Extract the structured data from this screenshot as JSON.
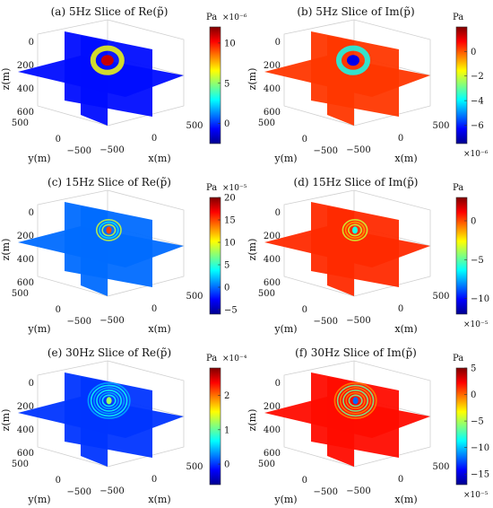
{
  "chart_data": [
    {
      "type": "heatmap",
      "title": "(a) 5Hz Slice of Re(p̃)",
      "colorbar": {
        "unit": "Pa",
        "exponent": "×10⁻⁶",
        "ticks": [
          "10",
          "5",
          "0"
        ],
        "tick_values": [
          10,
          5,
          0
        ],
        "range": [
          -2.5,
          12
        ]
      },
      "ztick_labels": [
        "0",
        "200",
        "400",
        "600"
      ],
      "ytick_labels": [
        "500",
        "0",
        "−500"
      ],
      "xtick_labels": [
        "−500",
        "0",
        "500"
      ],
      "xlabel": "x(m)",
      "ylabel": "y(m)",
      "zlabel": "z(m)",
      "background_value": -0.5,
      "source_value": 11,
      "colormap": "jet"
    },
    {
      "type": "heatmap",
      "title": "(b) 5Hz Slice of Im(p̃)",
      "colorbar": {
        "unit": "Pa",
        "exponent": "×10⁻⁶",
        "ticks": [
          "0",
          "−2",
          "−4",
          "−6"
        ],
        "tick_values": [
          0,
          -2,
          -4,
          -6
        ],
        "range": [
          -7.5,
          2
        ]
      },
      "ztick_labels": [
        "0",
        "200",
        "400",
        "600"
      ],
      "ytick_labels": [
        "500",
        "0",
        "−500"
      ],
      "xtick_labels": [
        "−500",
        "0",
        "500"
      ],
      "xlabel": "x(m)",
      "ylabel": "y(m)",
      "zlabel": "z(m)",
      "background_value": 0.3,
      "source_value": -6.5,
      "colormap": "jet"
    },
    {
      "type": "heatmap",
      "title": "(c) 15Hz Slice of Re(p̃)",
      "colorbar": {
        "unit": "Pa",
        "exponent": "×10⁻⁵",
        "ticks": [
          "20",
          "15",
          "10",
          "5",
          "0",
          "−5"
        ],
        "tick_values": [
          20,
          15,
          10,
          5,
          0,
          -5
        ],
        "range": [
          -6,
          20
        ]
      },
      "ztick_labels": [
        "0",
        "200",
        "400",
        "600"
      ],
      "ytick_labels": [
        "500",
        "0",
        "−500"
      ],
      "xtick_labels": [
        "−500",
        "0",
        "500"
      ],
      "xlabel": "x(m)",
      "ylabel": "y(m)",
      "zlabel": "z(m)",
      "background_value": 0,
      "source_value": 15,
      "colormap": "jet"
    },
    {
      "type": "heatmap",
      "title": "(d) 15Hz Slice of Im(p̃)",
      "colorbar": {
        "unit": "Pa",
        "exponent": "×10⁻⁵",
        "ticks": [
          "0",
          "−5",
          "−10"
        ],
        "tick_values": [
          0,
          -5,
          -10
        ],
        "range": [
          -12,
          3
        ]
      },
      "ztick_labels": [
        "0",
        "200",
        "400",
        "600"
      ],
      "ytick_labels": [
        "500",
        "0",
        "−500"
      ],
      "xtick_labels": [
        "−500",
        "0",
        "500"
      ],
      "xlabel": "x(m)",
      "ylabel": "y(m)",
      "zlabel": "z(m)",
      "background_value": 0.5,
      "source_value": -6,
      "colormap": "jet"
    },
    {
      "type": "heatmap",
      "title": "(e) 30Hz Slice of Re(p̃)",
      "colorbar": {
        "unit": "Pa",
        "exponent": "×10⁻⁴",
        "ticks": [
          "2",
          "1",
          "0"
        ],
        "tick_values": [
          2,
          1,
          0
        ],
        "range": [
          -0.6,
          2.8
        ]
      },
      "ztick_labels": [
        "0",
        "200",
        "400",
        "600"
      ],
      "ytick_labels": [
        "500",
        "0",
        "−500"
      ],
      "xtick_labels": [
        "−500",
        "0",
        "500"
      ],
      "xlabel": "x(m)",
      "ylabel": "y(m)",
      "zlabel": "z(m)",
      "background_value": 0,
      "source_value": 1.2,
      "colormap": "jet"
    },
    {
      "type": "heatmap",
      "title": "(f) 30Hz Slice of Im(p̃)",
      "colorbar": {
        "unit": "Pa",
        "exponent": "×10⁻⁵",
        "ticks": [
          "5",
          "0",
          "−5",
          "−10",
          "−15"
        ],
        "tick_values": [
          5,
          0,
          -5,
          -10,
          -15
        ],
        "range": [
          -17,
          5
        ]
      },
      "ztick_labels": [
        "0",
        "200",
        "400",
        "600"
      ],
      "ytick_labels": [
        "500",
        "0",
        "−500"
      ],
      "xtick_labels": [
        "−500",
        "0",
        "500"
      ],
      "xlabel": "x(m)",
      "ylabel": "y(m)",
      "zlabel": "z(m)",
      "background_value": 2,
      "source_value": -12,
      "colormap": "jet"
    }
  ]
}
